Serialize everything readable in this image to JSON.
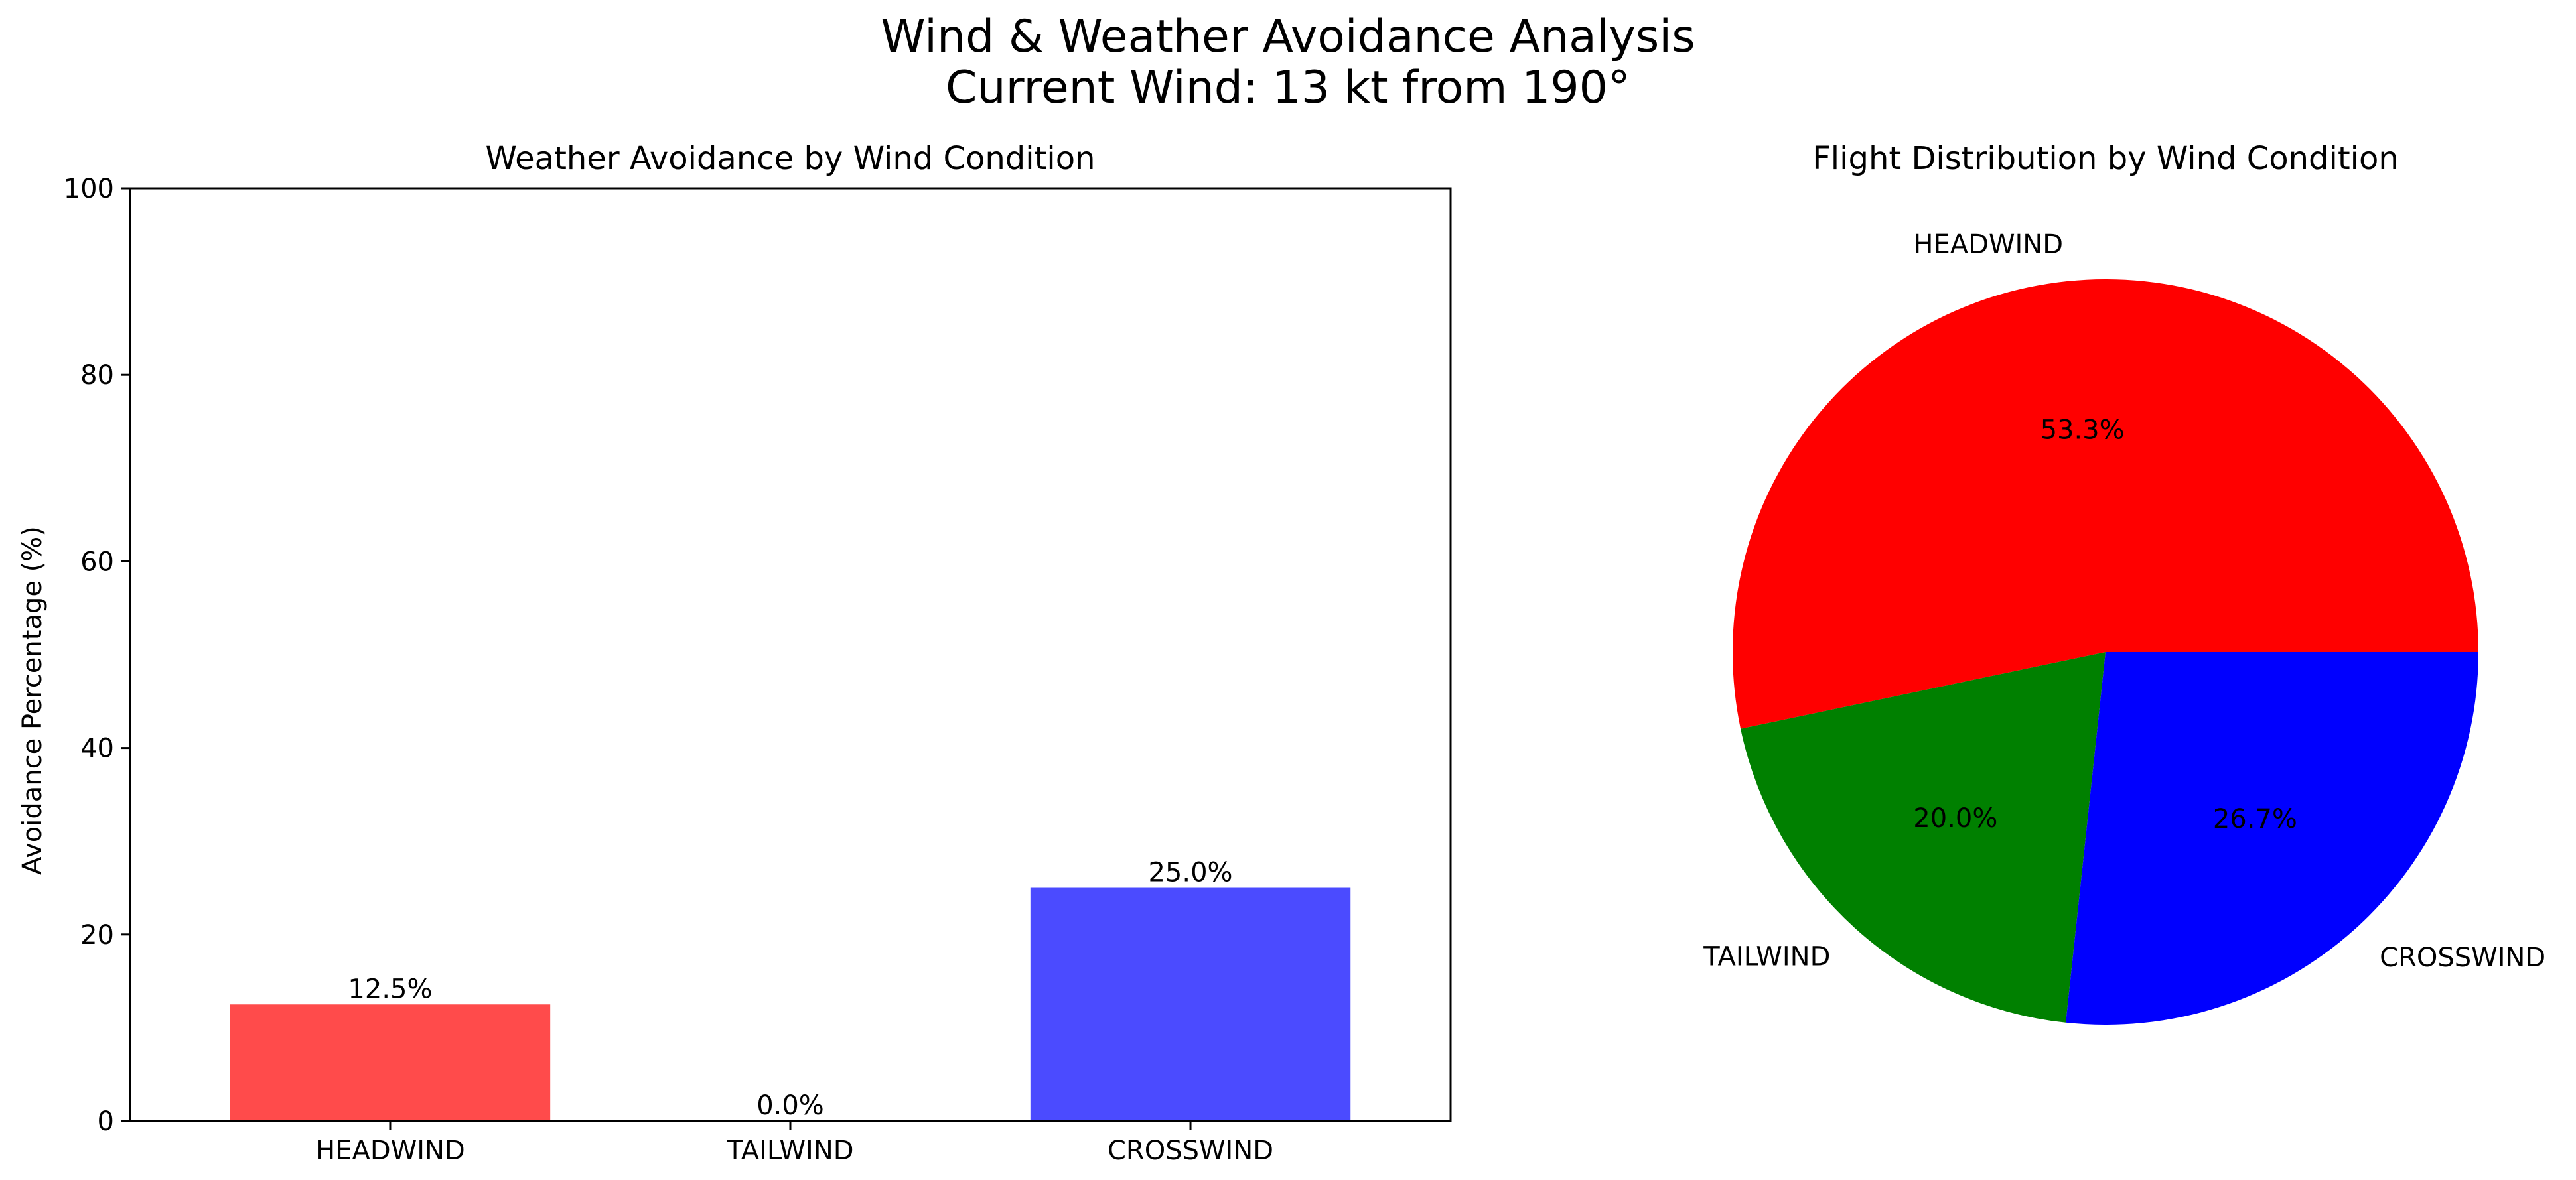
{
  "figure": {
    "title_line1": "Wind & Weather Avoidance Analysis",
    "title_line2": "Current Wind: 13 kt from 190°"
  },
  "chart_data": [
    {
      "type": "bar",
      "title": "Weather Avoidance by Wind Condition",
      "xlabel": "",
      "ylabel": "Avoidance Percentage (%)",
      "categories": [
        "HEADWIND",
        "TAILWIND",
        "CROSSWIND"
      ],
      "values": [
        12.5,
        0.0,
        25.0
      ],
      "value_labels": [
        "12.5%",
        "0.0%",
        "25.0%"
      ],
      "colors": [
        "#ff4b4b",
        "#4b8b4b",
        "#4b4bff"
      ],
      "ylim": [
        0,
        100
      ],
      "yticks": [
        0,
        20,
        40,
        60,
        80,
        100
      ],
      "grid": false
    },
    {
      "type": "pie",
      "title": "Flight Distribution by Wind Condition",
      "labels": [
        "HEADWIND",
        "TAILWIND",
        "CROSSWIND"
      ],
      "values": [
        53.3,
        20.0,
        26.7
      ],
      "value_labels": [
        "53.3%",
        "20.0%",
        "26.7%"
      ],
      "colors": [
        "#ff0000",
        "#008000",
        "#0000ff"
      ],
      "start_angle_deg": 0,
      "direction": "counterclockwise"
    }
  ]
}
